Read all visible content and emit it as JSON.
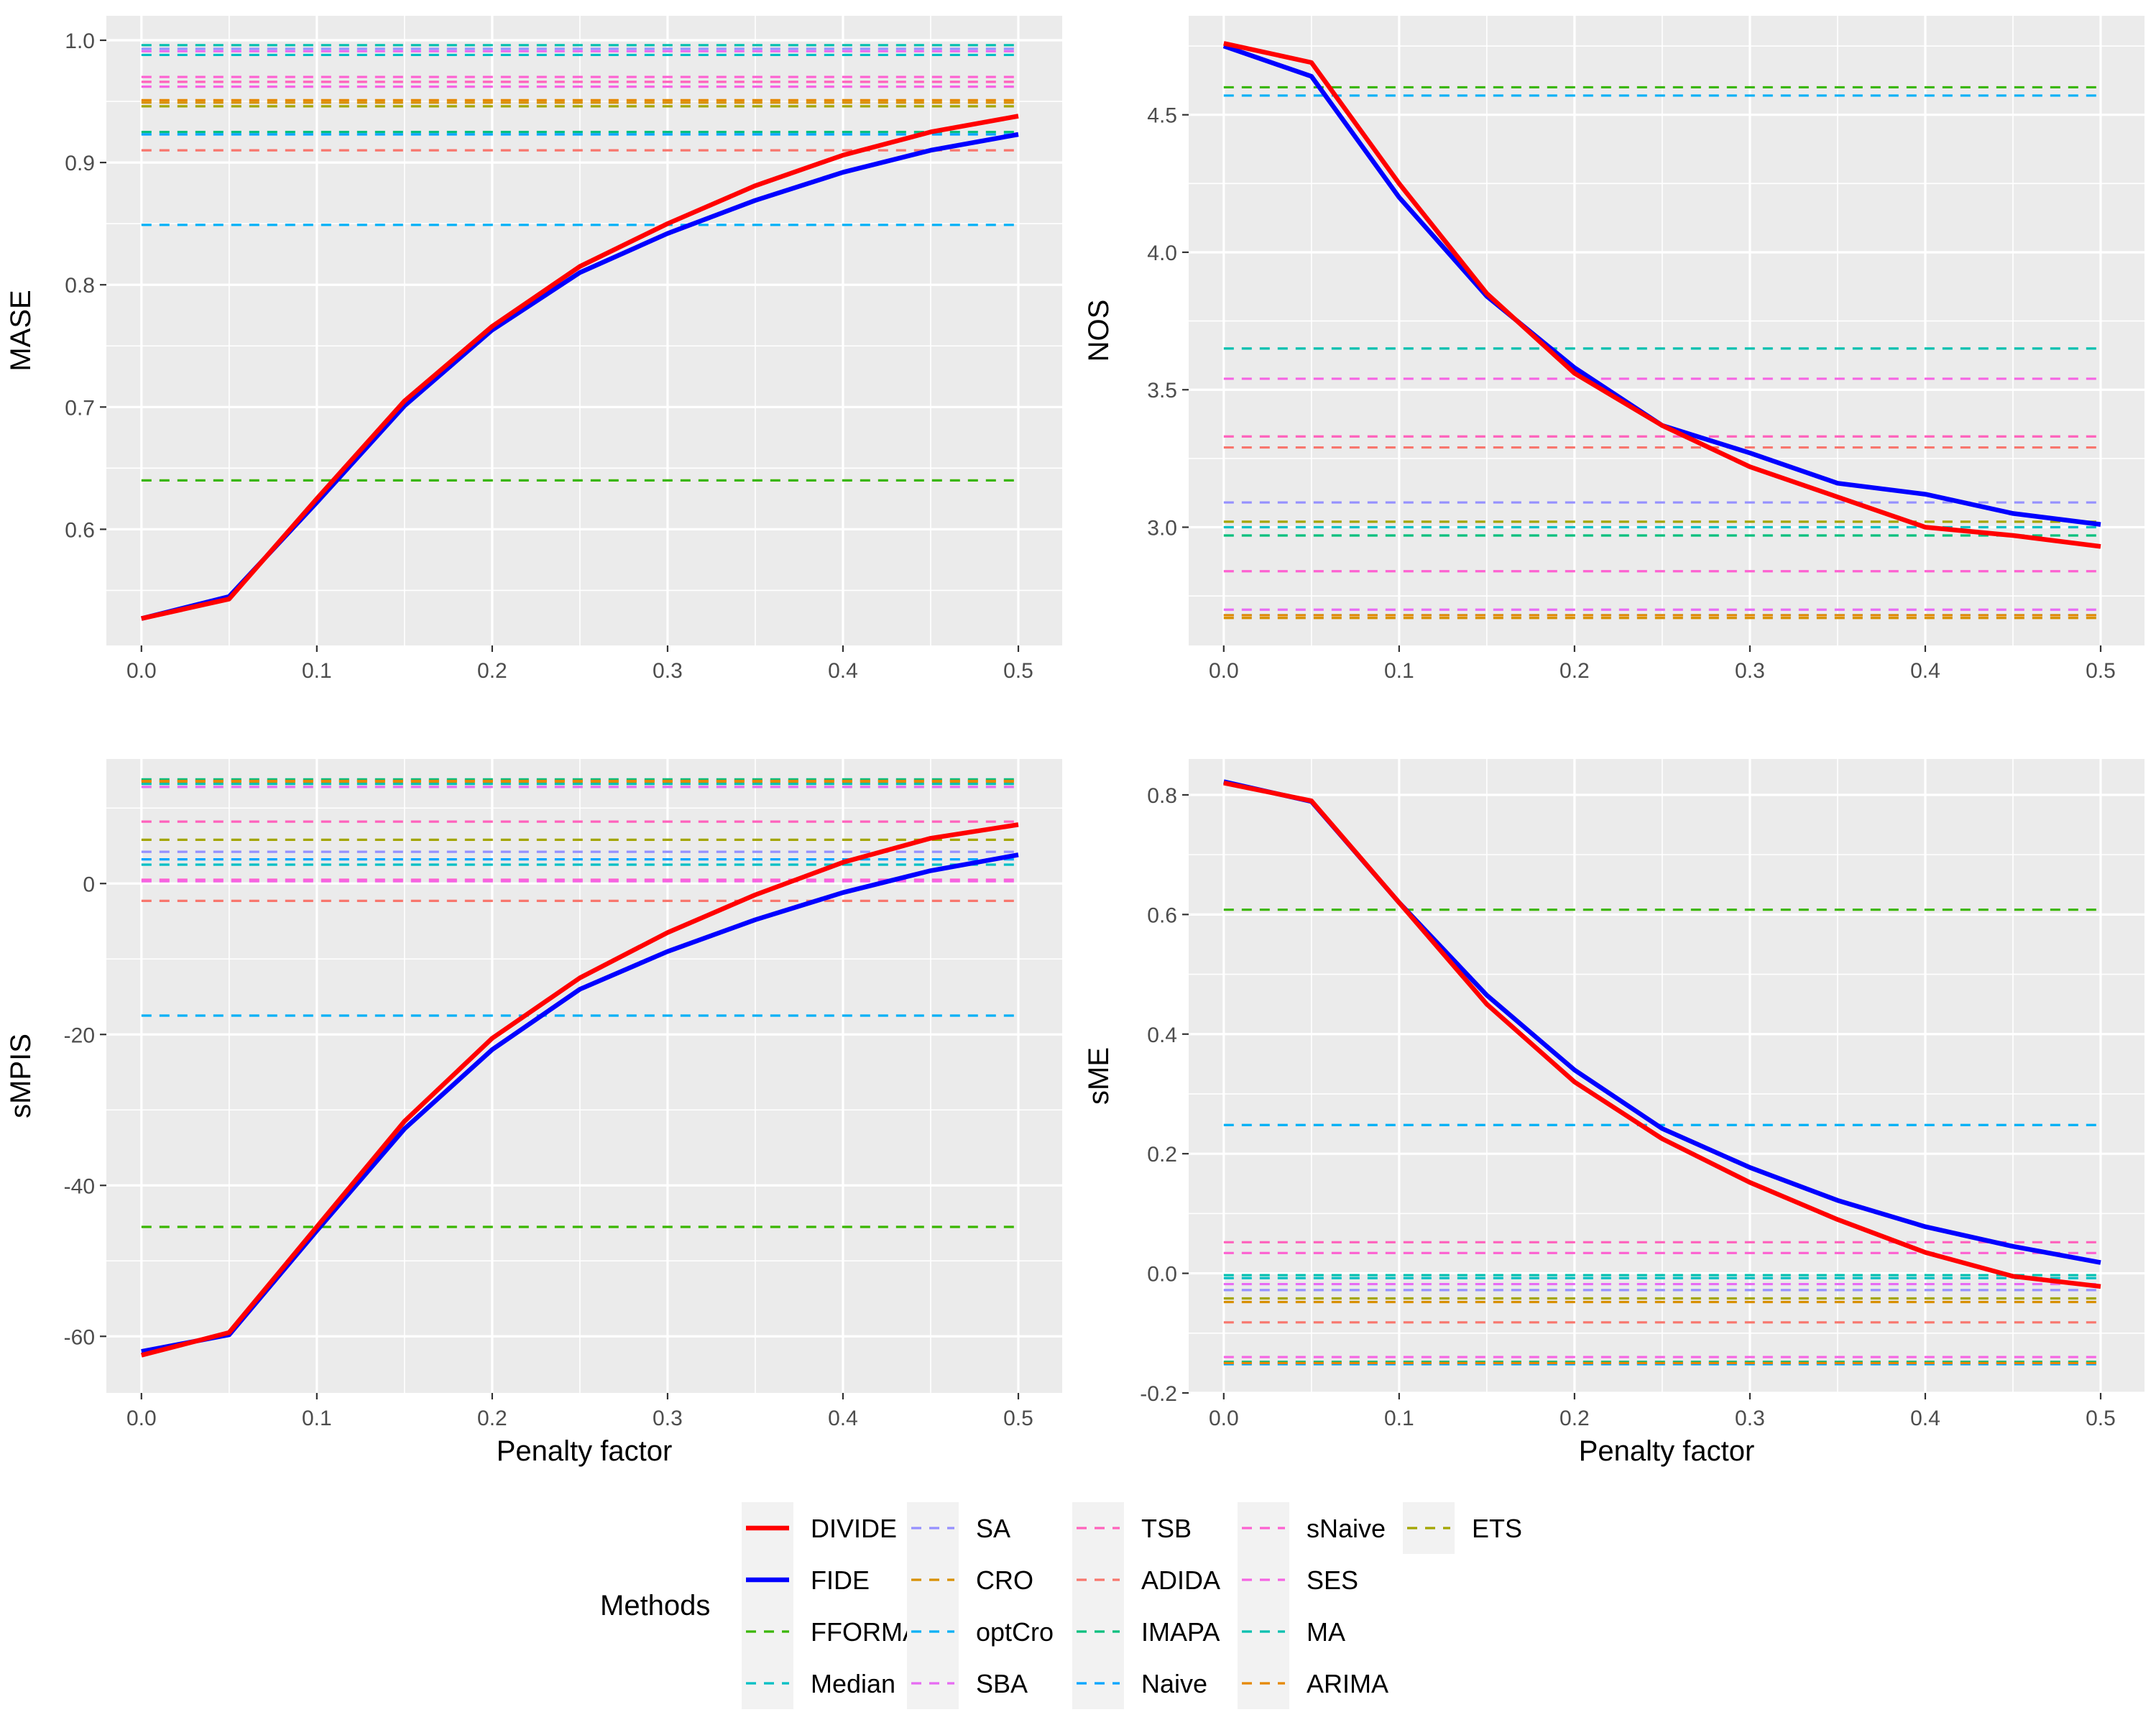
{
  "chart_data": [
    {
      "type": "line",
      "panel": "top-left",
      "xlabel": "",
      "ylabel": "MASE",
      "xlim": [
        -0.02,
        0.525
      ],
      "ylim": [
        0.505,
        1.02
      ],
      "x_ticks": [
        "0.0",
        "0.1",
        "0.2",
        "0.3",
        "0.4",
        "0.5"
      ],
      "y_ticks": [
        "0.6",
        "0.7",
        "0.8",
        "0.9",
        "1.0"
      ],
      "x": [
        0.0,
        0.05,
        0.1,
        0.15,
        0.2,
        0.25,
        0.3,
        0.35,
        0.4,
        0.45,
        0.5
      ],
      "series": [
        {
          "name": "DIVIDE",
          "values": [
            0.527,
            0.543,
            0.625,
            0.705,
            0.766,
            0.815,
            0.85,
            0.881,
            0.906,
            0.925,
            0.938
          ]
        },
        {
          "name": "FIDE",
          "values": [
            0.527,
            0.545,
            0.622,
            0.701,
            0.763,
            0.81,
            0.842,
            0.869,
            0.892,
            0.91,
            0.923
          ]
        }
      ],
      "baselines": [
        {
          "name": "FFORMA",
          "value": 0.64
        },
        {
          "name": "Median",
          "value": 0.988
        },
        {
          "name": "SA",
          "value": 0.993
        },
        {
          "name": "CRO",
          "value": 0.949
        },
        {
          "name": "optCro",
          "value": 0.849
        },
        {
          "name": "SBA",
          "value": 0.991
        },
        {
          "name": "TSB",
          "value": 0.966
        },
        {
          "name": "ADIDA",
          "value": 0.91
        },
        {
          "name": "IMAPA",
          "value": 0.925
        },
        {
          "name": "Naive",
          "value": 0.923
        },
        {
          "name": "sNaive",
          "value": 0.97
        },
        {
          "name": "SES",
          "value": 0.962
        },
        {
          "name": "MA",
          "value": 0.996
        },
        {
          "name": "ARIMA",
          "value": 0.951
        },
        {
          "name": "ETS",
          "value": 0.946
        }
      ]
    },
    {
      "type": "line",
      "panel": "top-right",
      "xlabel": "",
      "ylabel": "NOS",
      "xlim": [
        -0.02,
        0.525
      ],
      "ylim": [
        2.57,
        4.86
      ],
      "x_ticks": [
        "0.0",
        "0.1",
        "0.2",
        "0.3",
        "0.4",
        "0.5"
      ],
      "y_ticks": [
        "3.0",
        "3.5",
        "4.0",
        "4.5"
      ],
      "x": [
        0.0,
        0.05,
        0.1,
        0.15,
        0.2,
        0.25,
        0.3,
        0.35,
        0.4,
        0.45,
        0.5
      ],
      "series": [
        {
          "name": "DIVIDE",
          "values": [
            4.76,
            4.69,
            4.25,
            3.85,
            3.56,
            3.37,
            3.22,
            3.11,
            3.0,
            2.97,
            2.93
          ]
        },
        {
          "name": "FIDE",
          "values": [
            4.75,
            4.64,
            4.2,
            3.84,
            3.58,
            3.37,
            3.27,
            3.16,
            3.12,
            3.05,
            3.01
          ]
        }
      ],
      "baselines": [
        {
          "name": "FFORMA",
          "value": 4.6
        },
        {
          "name": "Median",
          "value": 3.0
        },
        {
          "name": "SA",
          "value": 3.09
        },
        {
          "name": "CRO",
          "value": 2.67
        },
        {
          "name": "optCro",
          "value": 4.57
        },
        {
          "name": "SBA",
          "value": 2.7
        },
        {
          "name": "TSB",
          "value": 3.33
        },
        {
          "name": "ADIDA",
          "value": 3.29
        },
        {
          "name": "IMAPA",
          "value": 2.97
        },
        {
          "name": "Naive",
          "value": 2.68
        },
        {
          "name": "sNaive",
          "value": 2.84
        },
        {
          "name": "SES",
          "value": 3.54
        },
        {
          "name": "MA",
          "value": 3.65
        },
        {
          "name": "ARIMA",
          "value": 2.68
        },
        {
          "name": "ETS",
          "value": 3.02
        }
      ]
    },
    {
      "type": "line",
      "panel": "bottom-left",
      "xlabel": "Penalty factor",
      "ylabel": "sMPIS",
      "xlim": [
        -0.02,
        0.525
      ],
      "ylim": [
        -67.5,
        16.5
      ],
      "x_ticks": [
        "0.0",
        "0.1",
        "0.2",
        "0.3",
        "0.4",
        "0.5"
      ],
      "y_ticks": [
        "-60",
        "-40",
        "-20",
        "0"
      ],
      "x": [
        0.0,
        0.05,
        0.1,
        0.15,
        0.2,
        0.25,
        0.3,
        0.35,
        0.4,
        0.45,
        0.5
      ],
      "series": [
        {
          "name": "DIVIDE",
          "values": [
            -62.5,
            -59.5,
            -45.5,
            -31.5,
            -20.5,
            -12.5,
            -6.5,
            -1.5,
            2.8,
            6.0,
            7.8
          ]
        },
        {
          "name": "FIDE",
          "values": [
            -62.0,
            -59.8,
            -46.0,
            -32.5,
            -22.0,
            -14.0,
            -9.0,
            -4.8,
            -1.2,
            1.7,
            3.8
          ]
        }
      ],
      "baselines": [
        {
          "name": "FFORMA",
          "value": -45.5
        },
        {
          "name": "Median",
          "value": 2.5
        },
        {
          "name": "SA",
          "value": 4.2
        },
        {
          "name": "CRO",
          "value": 13.5
        },
        {
          "name": "optCro",
          "value": -17.5
        },
        {
          "name": "SBA",
          "value": 12.8
        },
        {
          "name": "TSB",
          "value": 8.2
        },
        {
          "name": "ADIDA",
          "value": -2.3
        },
        {
          "name": "IMAPA",
          "value": 13.8
        },
        {
          "name": "Naive",
          "value": 3.2
        },
        {
          "name": "sNaive",
          "value": 0.5
        },
        {
          "name": "SES",
          "value": 0.3
        },
        {
          "name": "MA",
          "value": 13.2
        },
        {
          "name": "ARIMA",
          "value": 13.6
        },
        {
          "name": "ETS",
          "value": 5.8
        }
      ]
    },
    {
      "type": "line",
      "panel": "bottom-right",
      "xlabel": "Penalty factor",
      "ylabel": "sME",
      "xlim": [
        -0.02,
        0.525
      ],
      "ylim": [
        -0.2,
        0.86
      ],
      "x_ticks": [
        "0.0",
        "0.1",
        "0.2",
        "0.3",
        "0.4",
        "0.5"
      ],
      "y_ticks": [
        "-0.2",
        "0.0",
        "0.2",
        "0.4",
        "0.6",
        "0.8"
      ],
      "x": [
        0.0,
        0.05,
        0.1,
        0.15,
        0.2,
        0.25,
        0.3,
        0.35,
        0.4,
        0.45,
        0.5
      ],
      "series": [
        {
          "name": "DIVIDE",
          "values": [
            0.82,
            0.79,
            0.62,
            0.45,
            0.32,
            0.225,
            0.152,
            0.09,
            0.035,
            -0.005,
            -0.022
          ]
        },
        {
          "name": "FIDE",
          "values": [
            0.822,
            0.789,
            0.62,
            0.465,
            0.34,
            0.242,
            0.177,
            0.122,
            0.078,
            0.045,
            0.018
          ]
        }
      ],
      "baselines": [
        {
          "name": "FFORMA",
          "value": 0.608
        },
        {
          "name": "Median",
          "value": -0.008
        },
        {
          "name": "SA",
          "value": -0.028
        },
        {
          "name": "CRO",
          "value": -0.048
        },
        {
          "name": "optCro",
          "value": 0.248
        },
        {
          "name": "SBA",
          "value": -0.018
        },
        {
          "name": "TSB",
          "value": 0.052
        },
        {
          "name": "ADIDA",
          "value": -0.082
        },
        {
          "name": "IMAPA",
          "value": -0.148
        },
        {
          "name": "Naive",
          "value": -0.152
        },
        {
          "name": "sNaive",
          "value": 0.034
        },
        {
          "name": "SES",
          "value": -0.14
        },
        {
          "name": "MA",
          "value": -0.003
        },
        {
          "name": "ARIMA",
          "value": -0.15
        },
        {
          "name": "ETS",
          "value": -0.042
        }
      ]
    }
  ],
  "legend": {
    "title": "Methods",
    "placement": "bottom",
    "items": [
      {
        "name": "DIVIDE",
        "color": "#ff0000",
        "style": "solid"
      },
      {
        "name": "FIDE",
        "color": "#0000ff",
        "style": "solid"
      },
      {
        "name": "FFORMA",
        "color": "#39b600",
        "style": "dashed"
      },
      {
        "name": "Median",
        "color": "#00bfc4",
        "style": "dashed"
      },
      {
        "name": "SA",
        "color": "#9590ff",
        "style": "dashed"
      },
      {
        "name": "CRO",
        "color": "#d89000",
        "style": "dashed"
      },
      {
        "name": "optCro",
        "color": "#00b0f6",
        "style": "dashed"
      },
      {
        "name": "SBA",
        "color": "#e76bf3",
        "style": "dashed"
      },
      {
        "name": "TSB",
        "color": "#ff62bc",
        "style": "dashed"
      },
      {
        "name": "ADIDA",
        "color": "#f8766d",
        "style": "dashed"
      },
      {
        "name": "IMAPA",
        "color": "#00bf7d",
        "style": "dashed"
      },
      {
        "name": "Naive",
        "color": "#00a5ff",
        "style": "dashed"
      },
      {
        "name": "sNaive",
        "color": "#fd61d1",
        "style": "dashed"
      },
      {
        "name": "SES",
        "color": "#f564e3",
        "style": "dashed"
      },
      {
        "name": "MA",
        "color": "#00c0af",
        "style": "dashed"
      },
      {
        "name": "ARIMA",
        "color": "#e58700",
        "style": "dashed"
      },
      {
        "name": "ETS",
        "color": "#a3a500",
        "style": "dashed"
      }
    ]
  }
}
